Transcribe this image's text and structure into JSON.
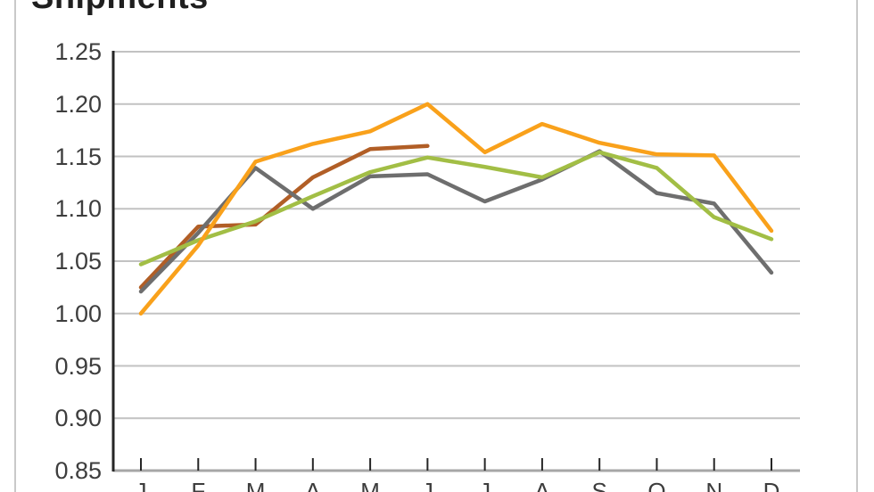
{
  "window": {
    "title": "Shipments"
  },
  "chart_data": {
    "type": "line",
    "title": "Shipments",
    "xlabel": "",
    "ylabel": "",
    "categories": [
      "J",
      "F",
      "M",
      "A",
      "M",
      "J",
      "J",
      "A",
      "S",
      "O",
      "N",
      "D"
    ],
    "y_ticks": [
      "1.25",
      "1.20",
      "1.15",
      "1.10",
      "1.05",
      "1.00",
      "0.95",
      "0.90",
      "0.85"
    ],
    "ylim": [
      0.85,
      1.25
    ],
    "grid": true,
    "legend_position": "none",
    "axis_color": "#262626",
    "baseline_color": "#a6a6a6",
    "gridline_color": "#c2c2c2",
    "series": [
      {
        "name": "series-brown",
        "color": "#b15e26",
        "values": [
          1.025,
          1.083,
          1.085,
          1.13,
          1.157,
          1.16
        ]
      },
      {
        "name": "series-gray",
        "color": "#6e6e6e",
        "values": [
          1.021,
          1.077,
          1.139,
          1.1,
          1.131,
          1.133,
          1.107,
          1.128,
          1.155,
          1.115,
          1.105,
          1.039
        ]
      },
      {
        "name": "series-green",
        "color": "#a2be45",
        "values": [
          1.047,
          1.07,
          1.088,
          1.112,
          1.135,
          1.149,
          1.14,
          1.13,
          1.154,
          1.139,
          1.092,
          1.071
        ]
      },
      {
        "name": "series-orange",
        "color": "#f9a11b",
        "values": [
          1.0,
          1.065,
          1.145,
          1.162,
          1.174,
          1.2,
          1.154,
          1.181,
          1.163,
          1.152,
          1.151,
          1.079
        ]
      }
    ]
  }
}
